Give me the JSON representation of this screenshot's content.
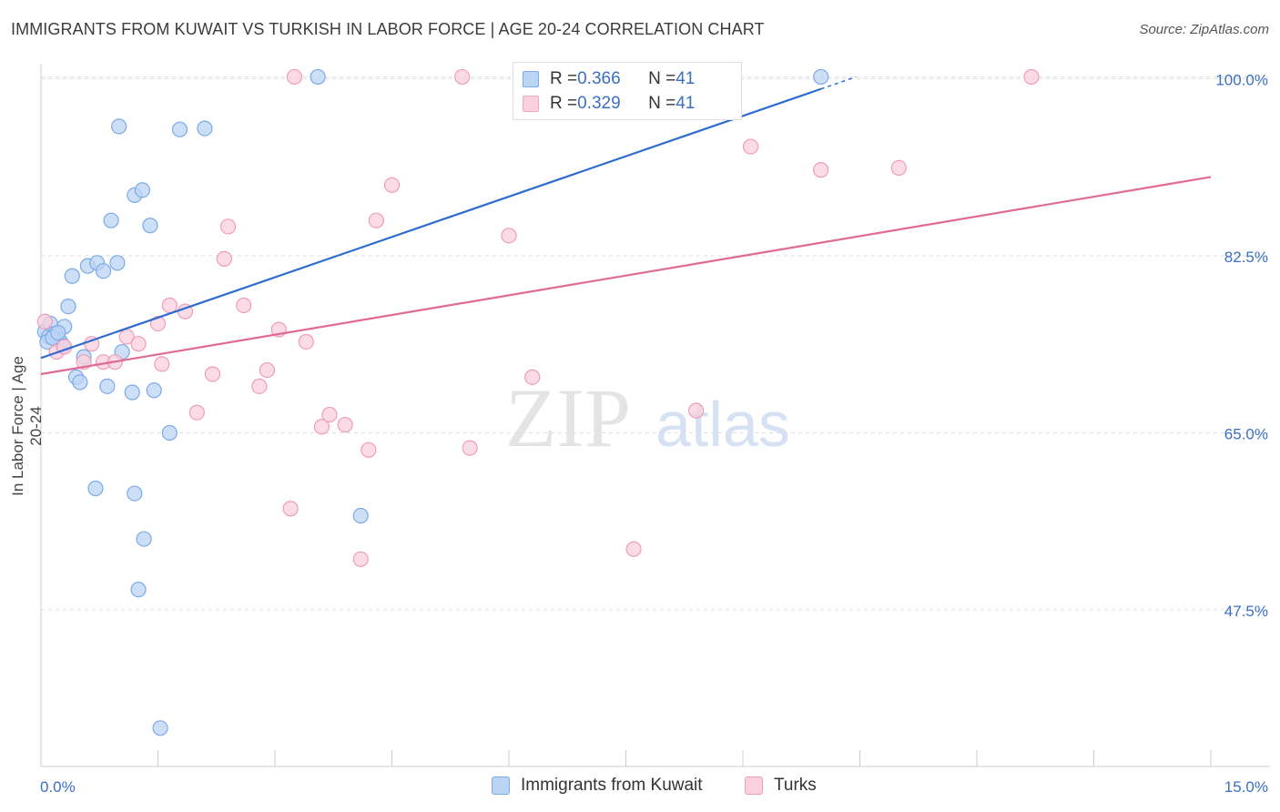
{
  "title": "IMMIGRANTS FROM KUWAIT VS TURKISH IN LABOR FORCE | AGE 20-24 CORRELATION CHART",
  "source": "Source: ZipAtlas.com",
  "watermark": {
    "zip": "ZIP",
    "atlas": "atlas"
  },
  "legend_top": [
    {
      "r_label": "R = ",
      "r_value": "0.366",
      "n_label": "N = ",
      "n_value": "41",
      "color": "#7aaae8"
    },
    {
      "r_label": "R = ",
      "r_value": "0.329",
      "n_label": "N = ",
      "n_value": "41",
      "color": "#f4a7bf"
    }
  ],
  "chart_data": {
    "type": "scatter",
    "ylabel": "In Labor Force | Age 20-24",
    "xlim": [
      0,
      15
    ],
    "ylim": [
      32,
      101.5
    ],
    "x_tick_labels": [
      "0.0%",
      "15.0%"
    ],
    "y_ticks": [
      47.5,
      65.0,
      82.5,
      100.0
    ],
    "y_tick_labels": [
      "47.5%",
      "65.0%",
      "82.5%",
      "100.0%"
    ],
    "grid": true,
    "legend_position": "top-center",
    "series": [
      {
        "name": "Immigrants from Kuwait",
        "color": "#7aaae8",
        "fill": "#bcd4f4",
        "trend": {
          "x": [
            0,
            10.0
          ],
          "y": [
            72.4,
            99.0
          ]
        },
        "points": [
          [
            0.05,
            75.0
          ],
          [
            0.1,
            74.5
          ],
          [
            0.12,
            75.8
          ],
          [
            0.2,
            74.2
          ],
          [
            0.25,
            74.0
          ],
          [
            0.3,
            75.5
          ],
          [
            0.35,
            77.5
          ],
          [
            0.4,
            80.5
          ],
          [
            0.45,
            70.5
          ],
          [
            0.5,
            70.0
          ],
          [
            0.55,
            72.5
          ],
          [
            0.6,
            81.5
          ],
          [
            0.7,
            59.5
          ],
          [
            0.72,
            81.8
          ],
          [
            0.8,
            81.0
          ],
          [
            0.85,
            69.6
          ],
          [
            0.9,
            86.0
          ],
          [
            0.98,
            81.8
          ],
          [
            1.0,
            95.3
          ],
          [
            1.04,
            73.0
          ],
          [
            1.17,
            69.0
          ],
          [
            1.2,
            88.5
          ],
          [
            1.2,
            59.0
          ],
          [
            1.25,
            49.5
          ],
          [
            1.3,
            89.0
          ],
          [
            1.32,
            54.5
          ],
          [
            1.4,
            85.5
          ],
          [
            1.45,
            69.2
          ],
          [
            1.53,
            35.8
          ],
          [
            1.65,
            65.0
          ],
          [
            1.78,
            95.0
          ],
          [
            2.1,
            95.1
          ],
          [
            3.55,
            100.2
          ],
          [
            4.1,
            56.8
          ],
          [
            7.9,
            100.2
          ],
          [
            10.0,
            100.2
          ],
          [
            0.08,
            74.0
          ],
          [
            0.18,
            74.8
          ],
          [
            0.28,
            73.6
          ],
          [
            0.15,
            74.4
          ],
          [
            0.22,
            74.9
          ]
        ]
      },
      {
        "name": "Turks",
        "color": "#f09cb8",
        "fill": "#fad0de",
        "trend": {
          "x": [
            0,
            15.0
          ],
          "y": [
            70.8,
            90.3
          ]
        },
        "points": [
          [
            0.05,
            76.0
          ],
          [
            0.2,
            73.0
          ],
          [
            0.3,
            73.5
          ],
          [
            0.55,
            72.0
          ],
          [
            0.65,
            73.8
          ],
          [
            0.8,
            72.0
          ],
          [
            0.95,
            72.0
          ],
          [
            1.1,
            74.5
          ],
          [
            1.25,
            73.8
          ],
          [
            1.5,
            75.8
          ],
          [
            1.55,
            71.8
          ],
          [
            1.65,
            77.6
          ],
          [
            1.85,
            77.0
          ],
          [
            2.0,
            67.0
          ],
          [
            2.2,
            70.8
          ],
          [
            2.35,
            82.2
          ],
          [
            2.4,
            85.4
          ],
          [
            2.6,
            77.6
          ],
          [
            2.8,
            69.6
          ],
          [
            2.9,
            71.2
          ],
          [
            3.05,
            75.2
          ],
          [
            3.2,
            57.5
          ],
          [
            3.4,
            74.0
          ],
          [
            3.6,
            65.6
          ],
          [
            3.7,
            66.8
          ],
          [
            3.9,
            65.8
          ],
          [
            4.1,
            52.5
          ],
          [
            4.2,
            63.3
          ],
          [
            4.3,
            86.0
          ],
          [
            4.5,
            89.5
          ],
          [
            5.4,
            100.2
          ],
          [
            5.5,
            63.5
          ],
          [
            6.0,
            84.5
          ],
          [
            6.3,
            70.5
          ],
          [
            7.6,
            53.5
          ],
          [
            8.4,
            67.2
          ],
          [
            9.1,
            93.3
          ],
          [
            10.0,
            91.0
          ],
          [
            11.0,
            91.2
          ],
          [
            12.7,
            100.2
          ],
          [
            3.25,
            100.2
          ]
        ]
      }
    ]
  },
  "bottom_legend": [
    {
      "label": "Immigrants from Kuwait",
      "color": "#7aaae8",
      "fill": "#bcd4f4"
    },
    {
      "label": "Turks",
      "color": "#f09cb8",
      "fill": "#fad0de"
    }
  ]
}
